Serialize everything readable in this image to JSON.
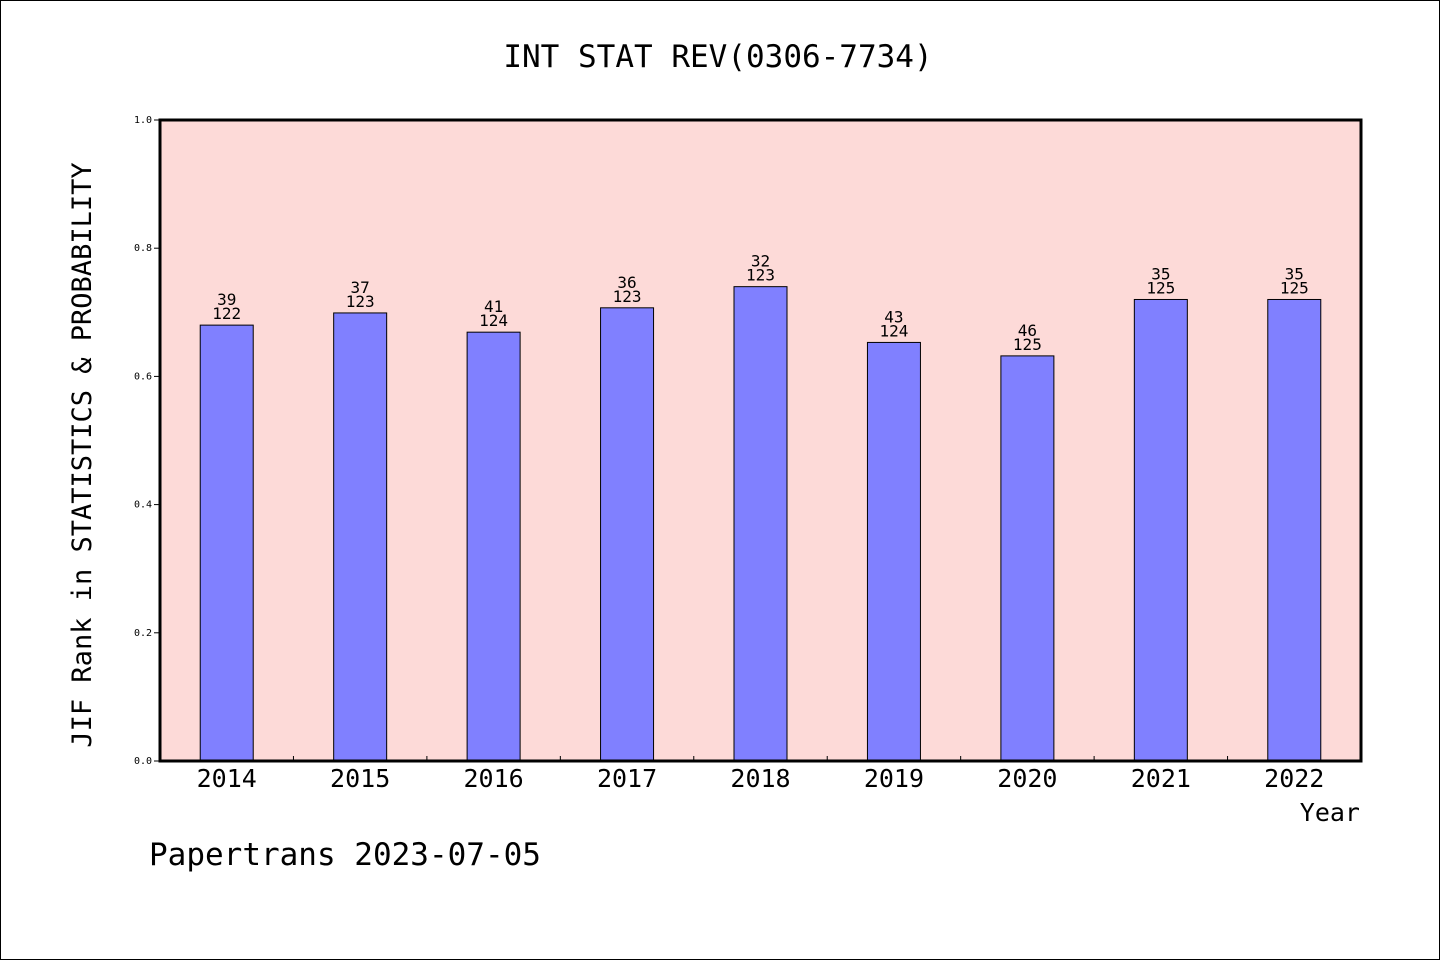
{
  "chart_data": {
    "type": "bar",
    "title": "INT STAT REV(0306-7734)",
    "xlabel": "Year",
    "ylabel": "JIF Rank in STATISTICS & PROBABILITY",
    "ylim": [
      0,
      1.0
    ],
    "yticks": [
      "0.0",
      "0.2",
      "0.4",
      "0.6",
      "0.8",
      "1.0"
    ],
    "categories": [
      "2014",
      "2015",
      "2016",
      "2017",
      "2018",
      "2019",
      "2020",
      "2021",
      "2022"
    ],
    "values": [
      0.68,
      0.699,
      0.669,
      0.707,
      0.74,
      0.653,
      0.632,
      0.72,
      0.72
    ],
    "rank": [
      "39",
      "37",
      "41",
      "36",
      "32",
      "43",
      "46",
      "35",
      "35"
    ],
    "total": [
      "122",
      "123",
      "124",
      "123",
      "123",
      "124",
      "125",
      "125",
      "125"
    ],
    "bar_color": "#8080ff",
    "plot_background": "#fddad8",
    "grid": false,
    "footer": "Papertrans 2023-07-05"
  }
}
